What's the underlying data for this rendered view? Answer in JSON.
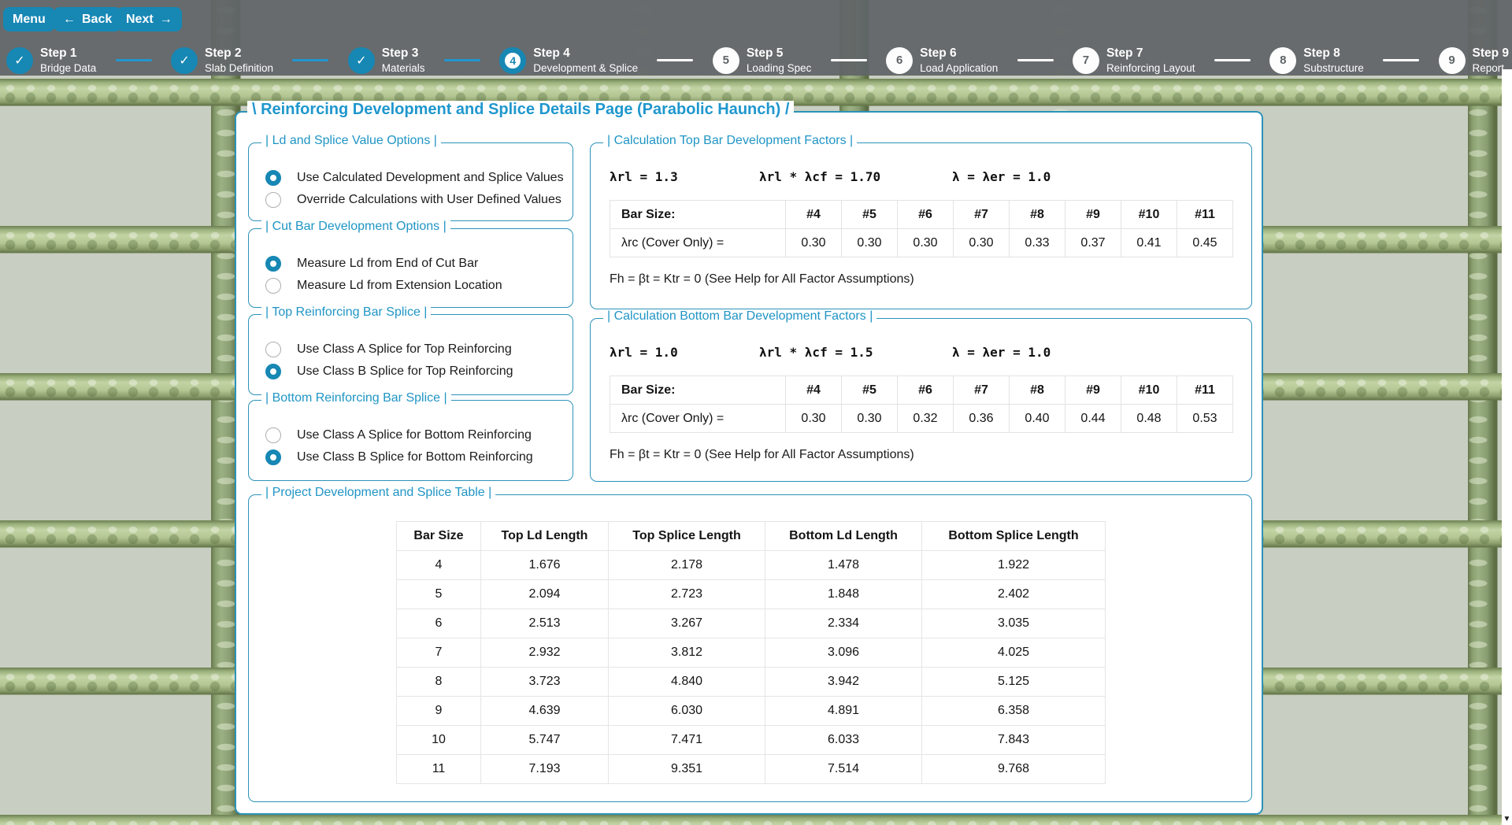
{
  "toolbar": {
    "menu_label": "Menu",
    "back_label": "Back",
    "next_label": "Next",
    "back_arrow_icon": "←",
    "next_arrow_icon": "→"
  },
  "stepper": {
    "check_icon": "✓",
    "steps": [
      {
        "number": "1",
        "title": "Step 1",
        "subtitle": "Bridge Data",
        "state": "done"
      },
      {
        "number": "2",
        "title": "Step 2",
        "subtitle": "Slab Definition",
        "state": "done"
      },
      {
        "number": "3",
        "title": "Step 3",
        "subtitle": "Materials",
        "state": "done"
      },
      {
        "number": "4",
        "title": "Step 4",
        "subtitle": "Development & Splice",
        "state": "current"
      },
      {
        "number": "5",
        "title": "Step 5",
        "subtitle": "Loading Spec",
        "state": "todo"
      },
      {
        "number": "6",
        "title": "Step 6",
        "subtitle": "Load Application",
        "state": "todo"
      },
      {
        "number": "7",
        "title": "Step 7",
        "subtitle": "Reinforcing Layout",
        "state": "todo"
      },
      {
        "number": "8",
        "title": "Step 8",
        "subtitle": "Substructure",
        "state": "todo"
      },
      {
        "number": "9",
        "title": "Step 9",
        "subtitle": "Report",
        "state": "todo"
      }
    ]
  },
  "page": {
    "title": "\\ Reinforcing Development and Splice Details Page (Parabolic Haunch) /"
  },
  "option_groups": [
    {
      "legend": "| Ld and Splice Value Options |",
      "items": [
        {
          "label": "Use Calculated Development and Splice Values",
          "selected": true
        },
        {
          "label": "Override Calculations with User Defined Values",
          "selected": false
        }
      ]
    },
    {
      "legend": "| Cut Bar Development Options |",
      "items": [
        {
          "label": "Measure Ld from End of Cut Bar",
          "selected": true
        },
        {
          "label": "Measure Ld from Extension Location",
          "selected": false
        }
      ]
    },
    {
      "legend": "| Top Reinforcing Bar Splice |",
      "items": [
        {
          "label": "Use Class A Splice for Top Reinforcing",
          "selected": false
        },
        {
          "label": "Use Class B Splice for Top Reinforcing",
          "selected": true
        }
      ]
    },
    {
      "legend": "| Bottom Reinforcing Bar Splice |",
      "items": [
        {
          "label": "Use Class A Splice for Bottom Reinforcing",
          "selected": false
        },
        {
          "label": "Use Class B Splice for Bottom Reinforcing",
          "selected": true
        }
      ]
    }
  ],
  "factor_sections": [
    {
      "legend": "| Calculation Top Bar Development Factors |",
      "lambda_rl": "λrl = 1.3",
      "lambda_product": "λrl * λcf = 1.70",
      "lambda_er": "λ = λer = 1.0",
      "table": {
        "row_header": "Bar Size:",
        "columns": [
          "#4",
          "#5",
          "#6",
          "#7",
          "#8",
          "#9",
          "#10",
          "#11"
        ],
        "value_label": "λrc (Cover Only) =",
        "values": [
          "0.30",
          "0.30",
          "0.30",
          "0.30",
          "0.33",
          "0.37",
          "0.41",
          "0.45"
        ]
      },
      "footnote": "Fh = βt = Ktr = 0 (See Help for All Factor Assumptions)"
    },
    {
      "legend": "| Calculation Bottom Bar Development Factors |",
      "lambda_rl": "λrl = 1.0",
      "lambda_product": "λrl * λcf = 1.5",
      "lambda_er": "λ = λer = 1.0",
      "table": {
        "row_header": "Bar Size:",
        "columns": [
          "#4",
          "#5",
          "#6",
          "#7",
          "#8",
          "#9",
          "#10",
          "#11"
        ],
        "value_label": "λrc (Cover Only) =",
        "values": [
          "0.30",
          "0.30",
          "0.32",
          "0.36",
          "0.40",
          "0.44",
          "0.48",
          "0.53"
        ]
      },
      "footnote": "Fh = βt = Ktr = 0 (See Help for All Factor Assumptions)"
    }
  ],
  "project_table": {
    "legend": "| Project Development and Splice Table |",
    "columns": [
      "Bar Size",
      "Top Ld Length",
      "Top Splice Length",
      "Bottom Ld Length",
      "Bottom Splice Length"
    ],
    "rows": [
      [
        "4",
        "1.676",
        "2.178",
        "1.478",
        "1.922"
      ],
      [
        "5",
        "2.094",
        "2.723",
        "1.848",
        "2.402"
      ],
      [
        "6",
        "2.513",
        "3.267",
        "2.334",
        "3.035"
      ],
      [
        "7",
        "2.932",
        "3.812",
        "3.096",
        "4.025"
      ],
      [
        "8",
        "3.723",
        "4.840",
        "3.942",
        "5.125"
      ],
      [
        "9",
        "4.639",
        "6.030",
        "4.891",
        "6.358"
      ],
      [
        "10",
        "5.747",
        "7.471",
        "6.033",
        "7.843"
      ],
      [
        "11",
        "7.193",
        "9.351",
        "7.514",
        "9.768"
      ]
    ]
  },
  "scrollbar": {
    "down_arrow_icon": "▼"
  },
  "colors": {
    "accent_blue": "#2095c5",
    "button_blue": "#1787b4",
    "box_border": "#2c92b8",
    "connector_done": "#2196d0",
    "rebar_green": "#b3c693"
  }
}
